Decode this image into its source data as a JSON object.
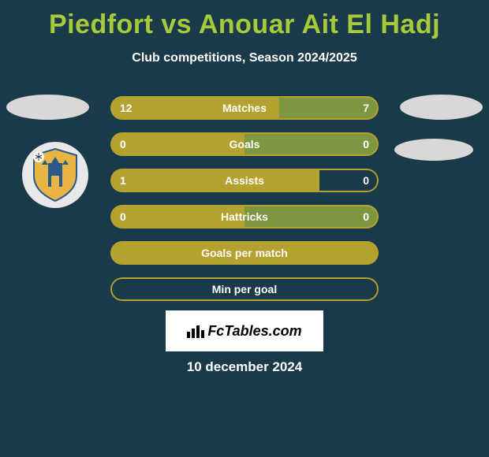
{
  "title": "Piedfort vs Anouar Ait El Hadj",
  "subtitle": "Club competitions, Season 2024/2025",
  "date": "10 december 2024",
  "logo": "FcTables.com",
  "colors": {
    "background": "#1a3a4a",
    "bar_fill": "#B5A12F",
    "bar_border": "#B5A12F",
    "bar_light": "#7f9640",
    "placeholder": "#d8d8d8",
    "title": "#a8c93a",
    "text": "#ffffff"
  },
  "bars": [
    {
      "label": "Matches",
      "left": "12",
      "right": "7",
      "left_pct": 63,
      "right_pct": 37,
      "show_values": true,
      "filled": true
    },
    {
      "label": "Goals",
      "left": "0",
      "right": "0",
      "left_pct": 50,
      "right_pct": 50,
      "show_values": true,
      "filled": true
    },
    {
      "label": "Assists",
      "left": "1",
      "right": "0",
      "left_pct": 78,
      "right_pct": 0,
      "show_values": true,
      "filled": "left-only"
    },
    {
      "label": "Hattricks",
      "left": "0",
      "right": "0",
      "left_pct": 50,
      "right_pct": 50,
      "show_values": true,
      "filled": true
    },
    {
      "label": "Goals per match",
      "left": "",
      "right": "",
      "left_pct": 100,
      "right_pct": 0,
      "show_values": false,
      "filled": "solid"
    },
    {
      "label": "Min per goal",
      "left": "",
      "right": "",
      "left_pct": 0,
      "right_pct": 0,
      "show_values": false,
      "filled": "outline"
    }
  ]
}
